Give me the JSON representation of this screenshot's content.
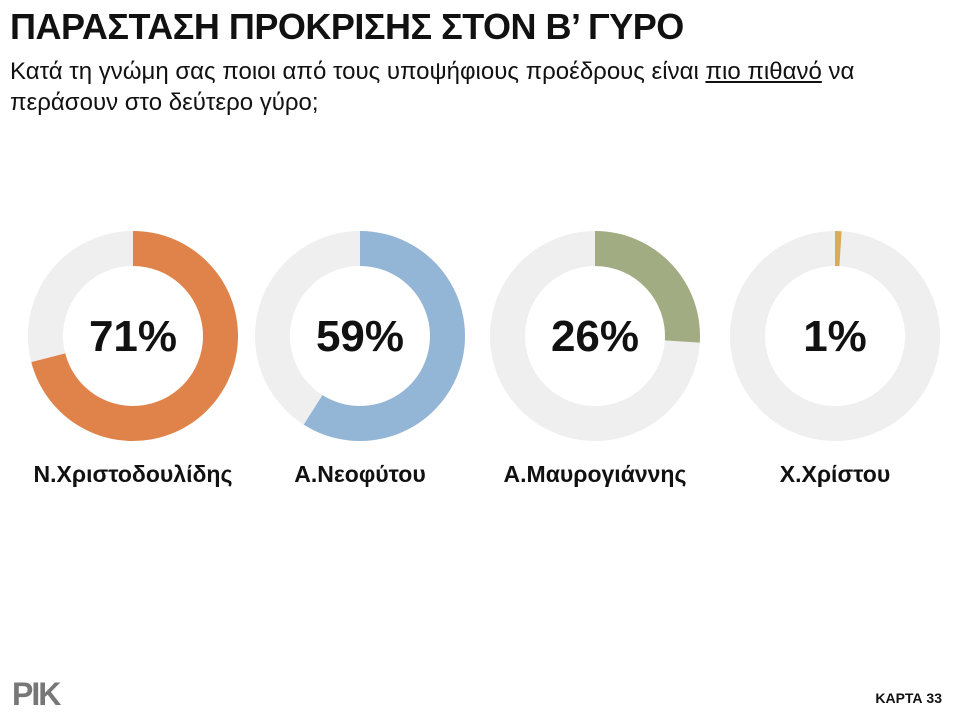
{
  "title": "ΠΑΡΑΣΤΑΣΗ ΠΡΟΚΡΙΣΗΣ ΣΤΟΝ Β’ ΓΥΡΟ",
  "subtitle": {
    "before": "Κατά τη γνώμη σας ποιοι από τους υποψήφιους προέδρους είναι ",
    "emphasis": "πιο πιθανό",
    "after": " να περάσουν στο δεύτερο γύρο;"
  },
  "logo": "ΡΙΚ",
  "footer": "ΚΑΡΤΑ 33",
  "chart_data": [
    {
      "type": "donut",
      "categories": [
        "Ν.Χριστοδουλίδης"
      ],
      "values": [
        71
      ],
      "value_labels": [
        "71%"
      ],
      "color": "#e0834a"
    },
    {
      "type": "donut",
      "categories": [
        "Α.Νεοφύτου"
      ],
      "values": [
        59
      ],
      "value_labels": [
        "59%"
      ],
      "color": "#93b5d6"
    },
    {
      "type": "donut",
      "categories": [
        "Α.Μαυρογιάννης"
      ],
      "values": [
        26
      ],
      "value_labels": [
        "26%"
      ],
      "color": "#a2ac82"
    },
    {
      "type": "donut",
      "categories": [
        "Χ.Χρίστου"
      ],
      "values": [
        1
      ],
      "value_labels": [
        "1%"
      ],
      "color": "#d9aa58"
    }
  ]
}
